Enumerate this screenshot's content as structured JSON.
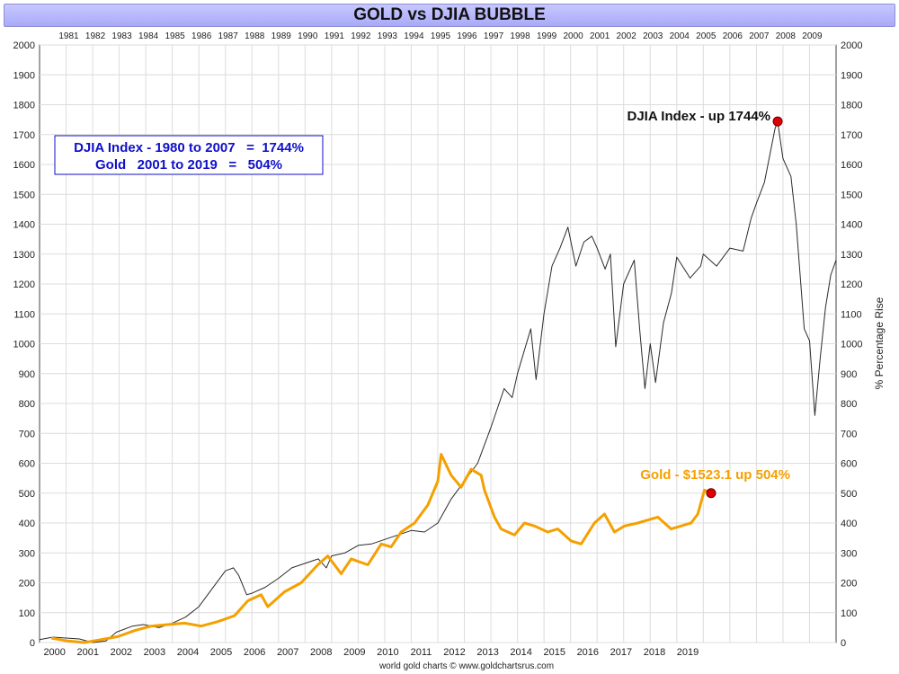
{
  "title": "GOLD vs DJIA BUBBLE",
  "footer": "world gold charts © www.goldchartsrus.com",
  "colors": {
    "djia": "#2b2b2b",
    "gold": "#f5a000",
    "box_text": "#1010c8",
    "marker": "#e00000",
    "grid": "#dcdcdc"
  },
  "summary_box": {
    "line1": "DJIA Index - 1980 to 2007   =  1744%",
    "line2": "Gold   2001 to 2019   =   504%"
  },
  "chart_data": {
    "type": "line",
    "y_axis": {
      "ticks": [
        0,
        100,
        200,
        300,
        400,
        500,
        600,
        700,
        800,
        900,
        1000,
        1100,
        1200,
        1300,
        1400,
        1500,
        1600,
        1700,
        1800,
        1900,
        2000
      ],
      "ylim": [
        0,
        2000
      ]
    },
    "right_axis_label": "% Percentage Rise",
    "top_axis": {
      "labels": [
        "1981",
        "1982",
        "1983",
        "1984",
        "1985",
        "1986",
        "1987",
        "1988",
        "1989",
        "1990",
        "1991",
        "1992",
        "1993",
        "1994",
        "1995",
        "1996",
        "1997",
        "1998",
        "1999",
        "2000",
        "2001",
        "2002",
        "2003",
        "2004",
        "2005",
        "2006",
        "2007",
        "2008",
        "2009"
      ]
    },
    "bottom_axis": {
      "labels": [
        "2000",
        "2001",
        "2002",
        "2003",
        "2004",
        "2005",
        "2006",
        "2007",
        "2008",
        "2009",
        "2010",
        "2011",
        "2012",
        "2013",
        "2014",
        "2015",
        "2016",
        "2017",
        "2018",
        "2019"
      ]
    },
    "series": [
      {
        "name": "DJIA Index",
        "axis": "top",
        "annotation": "DJIA Index - up 1744%",
        "points": [
          [
            1980.0,
            10
          ],
          [
            1980.5,
            18
          ],
          [
            1981.0,
            15
          ],
          [
            1981.5,
            12
          ],
          [
            1982.0,
            0
          ],
          [
            1982.5,
            5
          ],
          [
            1982.9,
            35
          ],
          [
            1983.5,
            55
          ],
          [
            1983.9,
            60
          ],
          [
            1984.5,
            50
          ],
          [
            1985.0,
            65
          ],
          [
            1985.5,
            85
          ],
          [
            1986.0,
            120
          ],
          [
            1986.5,
            180
          ],
          [
            1987.0,
            240
          ],
          [
            1987.3,
            250
          ],
          [
            1987.5,
            225
          ],
          [
            1987.8,
            160
          ],
          [
            1988.0,
            165
          ],
          [
            1988.5,
            185
          ],
          [
            1989.0,
            215
          ],
          [
            1989.5,
            250
          ],
          [
            1990.0,
            265
          ],
          [
            1990.5,
            280
          ],
          [
            1990.8,
            250
          ],
          [
            1991.0,
            290
          ],
          [
            1991.5,
            300
          ],
          [
            1992.0,
            325
          ],
          [
            1992.5,
            330
          ],
          [
            1993.0,
            345
          ],
          [
            1993.5,
            360
          ],
          [
            1994.0,
            375
          ],
          [
            1994.5,
            370
          ],
          [
            1995.0,
            400
          ],
          [
            1995.5,
            480
          ],
          [
            1996.0,
            540
          ],
          [
            1996.5,
            600
          ],
          [
            1997.0,
            720
          ],
          [
            1997.5,
            850
          ],
          [
            1997.8,
            820
          ],
          [
            1998.0,
            900
          ],
          [
            1998.5,
            1050
          ],
          [
            1998.7,
            880
          ],
          [
            1999.0,
            1100
          ],
          [
            1999.3,
            1260
          ],
          [
            1999.6,
            1320
          ],
          [
            1999.9,
            1390
          ],
          [
            2000.2,
            1260
          ],
          [
            2000.5,
            1340
          ],
          [
            2000.8,
            1360
          ],
          [
            2001.0,
            1320
          ],
          [
            2001.3,
            1250
          ],
          [
            2001.5,
            1300
          ],
          [
            2001.7,
            990
          ],
          [
            2002.0,
            1200
          ],
          [
            2002.4,
            1280
          ],
          [
            2002.6,
            1050
          ],
          [
            2002.8,
            850
          ],
          [
            2003.0,
            1000
          ],
          [
            2003.2,
            870
          ],
          [
            2003.5,
            1070
          ],
          [
            2003.8,
            1170
          ],
          [
            2004.0,
            1290
          ],
          [
            2004.5,
            1220
          ],
          [
            2004.9,
            1260
          ],
          [
            2005.0,
            1300
          ],
          [
            2005.5,
            1260
          ],
          [
            2006.0,
            1320
          ],
          [
            2006.5,
            1310
          ],
          [
            2006.8,
            1420
          ],
          [
            2007.0,
            1470
          ],
          [
            2007.3,
            1540
          ],
          [
            2007.5,
            1630
          ],
          [
            2007.7,
            1720
          ],
          [
            2007.8,
            1744
          ],
          [
            2008.0,
            1620
          ],
          [
            2008.3,
            1560
          ],
          [
            2008.5,
            1400
          ],
          [
            2008.8,
            1050
          ],
          [
            2009.0,
            1010
          ],
          [
            2009.2,
            760
          ],
          [
            2009.4,
            950
          ],
          [
            2009.6,
            1120
          ],
          [
            2009.8,
            1230
          ],
          [
            2010.0,
            1280
          ]
        ]
      },
      {
        "name": "Gold",
        "axis": "bottom",
        "annotation": "Gold - $1523.1 up 504%",
        "points": [
          [
            2000.0,
            15
          ],
          [
            2000.5,
            5
          ],
          [
            2001.0,
            0
          ],
          [
            2001.5,
            10
          ],
          [
            2002.0,
            20
          ],
          [
            2002.5,
            40
          ],
          [
            2003.0,
            55
          ],
          [
            2003.5,
            60
          ],
          [
            2004.0,
            65
          ],
          [
            2004.5,
            55
          ],
          [
            2005.0,
            70
          ],
          [
            2005.5,
            90
          ],
          [
            2005.9,
            140
          ],
          [
            2006.3,
            160
          ],
          [
            2006.5,
            120
          ],
          [
            2007.0,
            170
          ],
          [
            2007.5,
            200
          ],
          [
            2008.0,
            260
          ],
          [
            2008.3,
            290
          ],
          [
            2008.7,
            230
          ],
          [
            2009.0,
            280
          ],
          [
            2009.5,
            260
          ],
          [
            2009.9,
            330
          ],
          [
            2010.2,
            320
          ],
          [
            2010.5,
            370
          ],
          [
            2010.9,
            400
          ],
          [
            2011.3,
            460
          ],
          [
            2011.6,
            540
          ],
          [
            2011.7,
            630
          ],
          [
            2012.0,
            560
          ],
          [
            2012.3,
            520
          ],
          [
            2012.6,
            580
          ],
          [
            2012.9,
            560
          ],
          [
            2013.0,
            510
          ],
          [
            2013.3,
            420
          ],
          [
            2013.5,
            380
          ],
          [
            2013.9,
            360
          ],
          [
            2014.2,
            400
          ],
          [
            2014.5,
            390
          ],
          [
            2014.9,
            370
          ],
          [
            2015.2,
            380
          ],
          [
            2015.6,
            340
          ],
          [
            2015.9,
            330
          ],
          [
            2016.3,
            400
          ],
          [
            2016.6,
            430
          ],
          [
            2016.9,
            370
          ],
          [
            2017.2,
            390
          ],
          [
            2017.6,
            400
          ],
          [
            2017.9,
            410
          ],
          [
            2018.2,
            420
          ],
          [
            2018.6,
            380
          ],
          [
            2018.9,
            390
          ],
          [
            2019.2,
            400
          ],
          [
            2019.4,
            430
          ],
          [
            2019.6,
            510
          ],
          [
            2019.8,
            500
          ]
        ]
      }
    ]
  }
}
